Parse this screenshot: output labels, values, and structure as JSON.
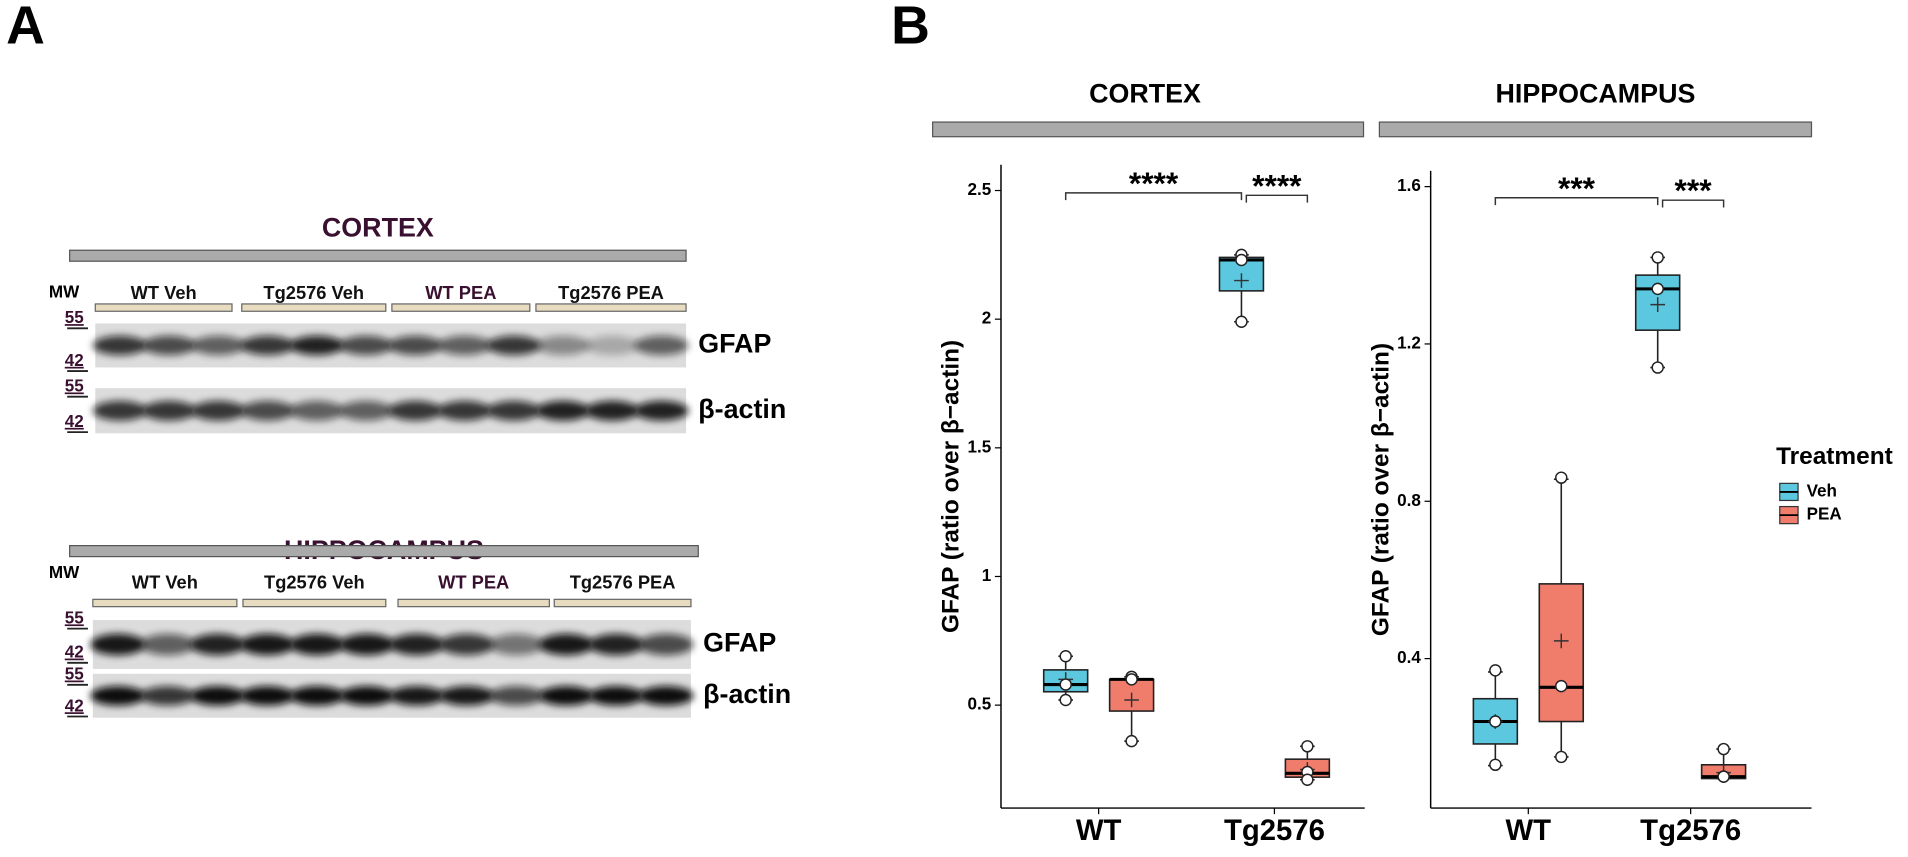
{
  "panel_labels": [
    "A",
    "B"
  ],
  "blots": [
    {
      "title": "CORTEX",
      "mw_header": "MW",
      "groups": [
        "WT Veh",
        "Tg2576 Veh",
        "WT PEA",
        "Tg2576 PEA"
      ],
      "rows": [
        {
          "label": "GFAP",
          "mw": [
            "55",
            "42"
          ]
        },
        {
          "label": "β-actin",
          "mw": [
            "55",
            "42"
          ]
        }
      ]
    },
    {
      "title": "HIPPOCAMPUS",
      "mw_header": "MW",
      "groups": [
        "WT Veh",
        "Tg2576 Veh",
        "WT PEA",
        "Tg2576 PEA"
      ],
      "rows": [
        {
          "label": "GFAP",
          "mw": [
            "55",
            "42"
          ]
        },
        {
          "label": "β-actin",
          "mw": [
            "55",
            "42"
          ]
        }
      ]
    }
  ],
  "chart_data": [
    {
      "type": "box",
      "title": "CORTEX",
      "ylabel": "GFAP (ratio over β−actin)",
      "categories": [
        "WT",
        "Tg2576"
      ],
      "ylim": [
        0.1,
        2.6
      ],
      "yticks": [
        0.5,
        1.0,
        1.5,
        2.0,
        2.5
      ],
      "legend_title": "Treatment",
      "annotations": [
        "****",
        "****"
      ],
      "series": [
        {
          "name": "Veh",
          "color": "#5bc8e0",
          "values": [
            {
              "low": 0.52,
              "q1": 0.552,
              "median": 0.58,
              "q3": 0.637,
              "high": 0.69,
              "mean": 0.6,
              "points": [
                0.69,
                0.58,
                0.52
              ]
            },
            {
              "low": 1.99,
              "q1": 2.11,
              "median": 2.23,
              "q3": 2.24,
              "high": 2.25,
              "mean": 2.15,
              "points": [
                2.25,
                2.23,
                1.99
              ]
            }
          ]
        },
        {
          "name": "PEA",
          "color": "#f07c6c",
          "values": [
            {
              "low": 0.36,
              "q1": 0.477,
              "median": 0.6,
              "q3": 0.6,
              "high": 0.61,
              "mean": 0.52,
              "points": [
                0.61,
                0.6,
                0.36
              ]
            },
            {
              "low": 0.21,
              "q1": 0.22,
              "median": 0.235,
              "q3": 0.29,
              "high": 0.34,
              "mean": 0.25,
              "points": [
                0.34,
                0.24,
                0.21
              ]
            }
          ]
        }
      ]
    },
    {
      "type": "box",
      "title": "HIPPOCAMPUS",
      "ylabel": "GFAP (ratio over β−actin)",
      "categories": [
        "WT",
        "Tg2576"
      ],
      "ylim": [
        0.02,
        1.64
      ],
      "yticks": [
        0.4,
        0.8,
        1.2,
        1.6
      ],
      "annotations": [
        "***",
        "***"
      ],
      "series": [
        {
          "color": "#5bc8e0",
          "values": [
            {
              "low": 0.128,
              "q1": 0.183,
              "median": 0.24,
              "q3": 0.298,
              "high": 0.366,
              "mean": 0.24,
              "points": [
                0.37,
                0.24,
                0.13
              ]
            },
            {
              "low": 1.14,
              "q1": 1.235,
              "median": 1.34,
              "q3": 1.375,
              "high": 1.42,
              "mean": 1.3,
              "points": [
                1.42,
                1.34,
                1.14
              ]
            }
          ]
        },
        {
          "color": "#f07c6c",
          "values": [
            {
              "low": 0.15,
              "q1": 0.24,
              "median": 0.327,
              "q3": 0.59,
              "high": 0.856,
              "mean": 0.445,
              "points": [
                0.86,
                0.33,
                0.15
              ]
            },
            {
              "low": 0.095,
              "q1": 0.095,
              "median": 0.1,
              "q3": 0.13,
              "high": 0.17,
              "mean": 0.11,
              "points": [
                0.17,
                0.1,
                0.1
              ]
            }
          ]
        }
      ]
    }
  ]
}
